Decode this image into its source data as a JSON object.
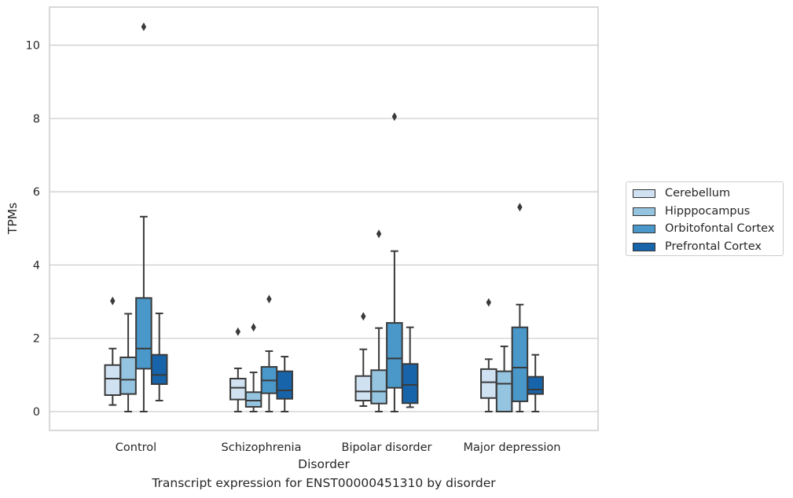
{
  "chart_data": {
    "type": "box",
    "xlabel": "Disorder",
    "ylabel": "TPMs",
    "ylim": [
      -0.5,
      11
    ],
    "yticks": [
      0,
      2,
      4,
      6,
      8,
      10
    ],
    "grid": "horizontal",
    "legend_position": "right",
    "categories": [
      "Control",
      "Schizophrenia",
      "Bipolar disorder",
      "Major depression"
    ],
    "series": [
      {
        "name": "Cerebellum",
        "color": "#d0e1f2",
        "boxes": [
          {
            "whisker_low": 0.18,
            "q1": 0.45,
            "median": 0.9,
            "q3": 1.27,
            "whisker_high": 1.72,
            "outliers": [
              3.02
            ]
          },
          {
            "whisker_low": 0.0,
            "q1": 0.33,
            "median": 0.65,
            "q3": 0.9,
            "whisker_high": 1.18,
            "outliers": [
              2.18
            ]
          },
          {
            "whisker_low": 0.15,
            "q1": 0.3,
            "median": 0.55,
            "q3": 0.97,
            "whisker_high": 1.7,
            "outliers": [
              2.6
            ]
          },
          {
            "whisker_low": 0.0,
            "q1": 0.37,
            "median": 0.8,
            "q3": 1.16,
            "whisker_high": 1.43,
            "outliers": [
              2.98
            ]
          }
        ]
      },
      {
        "name": "Hipppocampus",
        "color": "#94c4df",
        "boxes": [
          {
            "whisker_low": 0.0,
            "q1": 0.48,
            "median": 0.87,
            "q3": 1.48,
            "whisker_high": 2.67,
            "outliers": []
          },
          {
            "whisker_low": 0.0,
            "q1": 0.13,
            "median": 0.3,
            "q3": 0.53,
            "whisker_high": 1.07,
            "outliers": [
              2.3
            ]
          },
          {
            "whisker_low": 0.0,
            "q1": 0.22,
            "median": 0.55,
            "q3": 1.13,
            "whisker_high": 2.28,
            "outliers": [
              4.85
            ]
          },
          {
            "whisker_low": 0.0,
            "q1": 0.0,
            "median": 0.76,
            "q3": 1.1,
            "whisker_high": 1.78,
            "outliers": []
          }
        ]
      },
      {
        "name": "Orbitofontal Cortex",
        "color": "#4a98c9",
        "boxes": [
          {
            "whisker_low": 0.0,
            "q1": 1.17,
            "median": 1.72,
            "q3": 3.1,
            "whisker_high": 5.32,
            "outliers": [
              10.5
            ]
          },
          {
            "whisker_low": 0.0,
            "q1": 0.5,
            "median": 0.85,
            "q3": 1.22,
            "whisker_high": 1.65,
            "outliers": [
              3.07
            ]
          },
          {
            "whisker_low": 0.0,
            "q1": 0.65,
            "median": 1.45,
            "q3": 2.42,
            "whisker_high": 4.38,
            "outliers": [
              8.05
            ]
          },
          {
            "whisker_low": 0.0,
            "q1": 0.28,
            "median": 1.2,
            "q3": 2.3,
            "whisker_high": 2.92,
            "outliers": [
              5.58
            ]
          }
        ]
      },
      {
        "name": "Prefrontal Cortex",
        "color": "#1764ab",
        "boxes": [
          {
            "whisker_low": 0.3,
            "q1": 0.75,
            "median": 1.0,
            "q3": 1.55,
            "whisker_high": 2.68,
            "outliers": []
          },
          {
            "whisker_low": 0.0,
            "q1": 0.35,
            "median": 0.58,
            "q3": 1.1,
            "whisker_high": 1.5,
            "outliers": []
          },
          {
            "whisker_low": 0.12,
            "q1": 0.23,
            "median": 0.73,
            "q3": 1.3,
            "whisker_high": 2.3,
            "outliers": []
          },
          {
            "whisker_low": 0.0,
            "q1": 0.48,
            "median": 0.6,
            "q3": 0.95,
            "whisker_high": 1.55,
            "outliers": []
          }
        ]
      }
    ]
  },
  "caption": "Transcript expression for ENST00000451310 by disorder"
}
